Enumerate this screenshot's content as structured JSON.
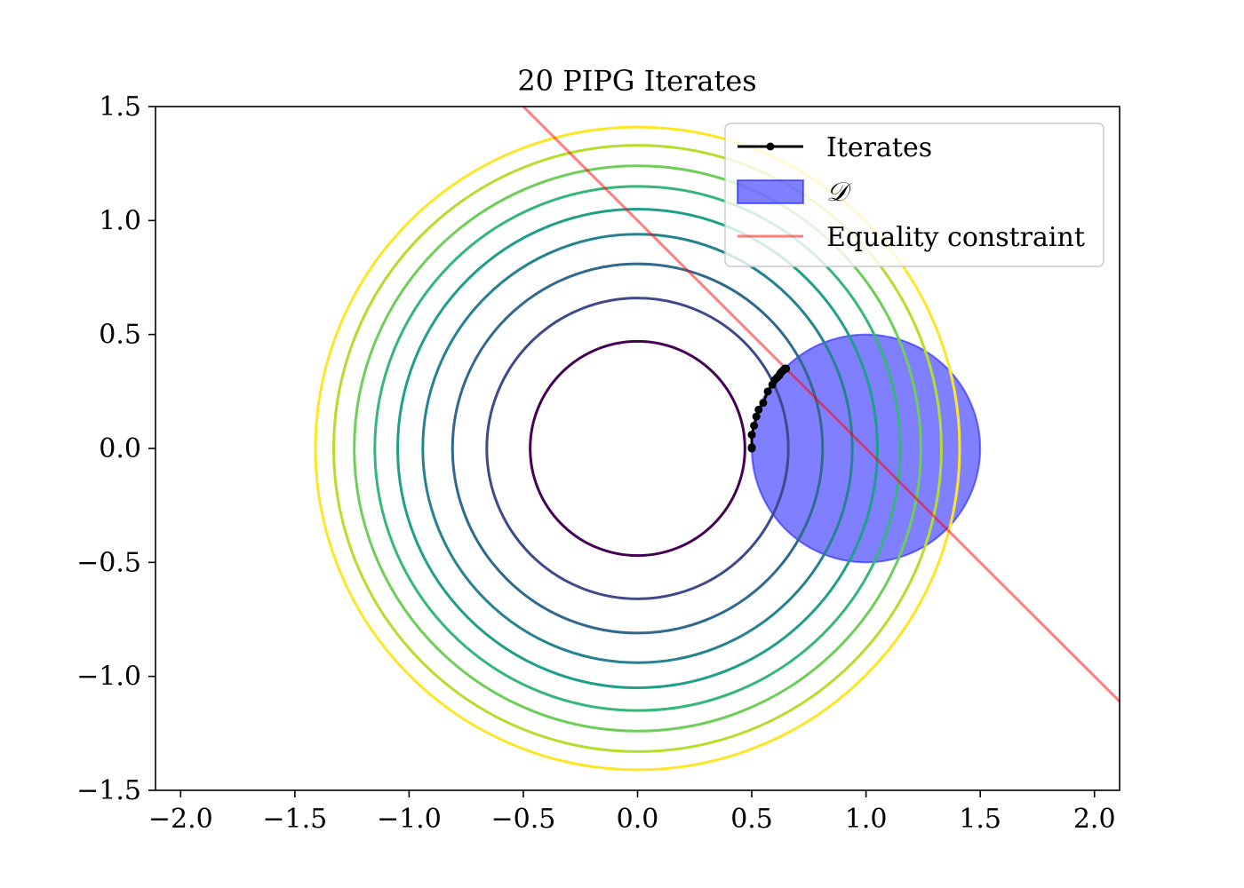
{
  "chart_data": {
    "type": "line",
    "title": "20 PIPG Iterates",
    "xlabel": "",
    "ylabel": "",
    "xlim": [
      -2.11,
      2.11
    ],
    "ylim": [
      -1.5,
      1.5
    ],
    "x_ticks": [
      -2.0,
      -1.5,
      -1.0,
      -0.5,
      0.0,
      0.5,
      1.0,
      1.5,
      2.0
    ],
    "x_tick_labels": [
      "−2.0",
      "−1.5",
      "−1.0",
      "−0.5",
      "0.0",
      "0.5",
      "1.0",
      "1.5",
      "2.0"
    ],
    "y_ticks": [
      -1.5,
      -1.0,
      -0.5,
      0.0,
      0.5,
      1.0,
      1.5
    ],
    "y_tick_labels": [
      "−1.5",
      "−1.0",
      "−0.5",
      "0.0",
      "0.5",
      "1.0",
      "1.5"
    ],
    "grid": false,
    "legend_position": "top-right",
    "contours": {
      "center": [
        0,
        0
      ],
      "radii": [
        0.47,
        0.66,
        0.81,
        0.94,
        1.05,
        1.15,
        1.24,
        1.33,
        1.41
      ],
      "colors": [
        "#440154",
        "#3e4a89",
        "#31688e",
        "#26828e",
        "#1f9e89",
        "#35b779",
        "#6ece58",
        "#b5de2b",
        "#fde725"
      ]
    },
    "series": [
      {
        "name": "Iterates",
        "color": "#000000",
        "x": [
          0.5,
          0.5,
          0.5,
          0.51,
          0.52,
          0.53,
          0.55,
          0.57,
          0.59,
          0.6,
          0.61,
          0.62,
          0.625,
          0.63,
          0.635,
          0.64,
          0.64,
          0.645,
          0.645,
          0.65
        ],
        "y": [
          0.0,
          0.005,
          0.06,
          0.1,
          0.14,
          0.17,
          0.2,
          0.25,
          0.28,
          0.3,
          0.31,
          0.32,
          0.33,
          0.335,
          0.34,
          0.345,
          0.345,
          0.35,
          0.35,
          0.35
        ]
      },
      {
        "name": "D",
        "type": "filled-circle",
        "center": [
          1.0,
          0.0
        ],
        "radius": 0.5,
        "color": "#0000ff",
        "alpha": 0.5
      },
      {
        "name": "Equality constraint",
        "type": "line",
        "color": "#ff0000",
        "alpha": 0.5,
        "x": [
          -0.5,
          2.11
        ],
        "y": [
          1.5,
          -1.11
        ]
      }
    ],
    "legend": [
      {
        "label": "Iterates",
        "kind": "line-marker",
        "color": "#000000"
      },
      {
        "label": "𝒟",
        "kind": "patch",
        "color": "#0000ff"
      },
      {
        "label": "Equality constraint",
        "kind": "line",
        "color": "#ff0000"
      }
    ]
  }
}
